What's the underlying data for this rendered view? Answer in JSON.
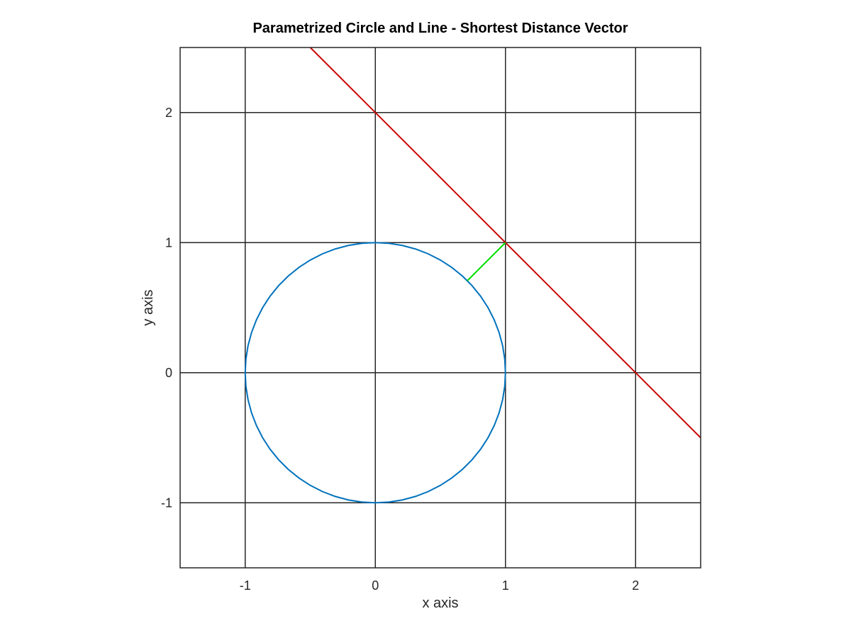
{
  "chart_data": {
    "type": "line",
    "title": "Parametrized Circle and Line - Shortest Distance Vector",
    "xlabel": "x axis",
    "ylabel": "y axis",
    "xlim": [
      -1.5,
      2.5
    ],
    "ylim": [
      -1.5,
      2.5
    ],
    "xticks": [
      -1,
      0,
      1,
      2
    ],
    "yticks": [
      -1,
      0,
      1,
      2
    ],
    "xtick_labels": [
      "-1",
      "0",
      "1",
      "2"
    ],
    "ytick_labels": [
      "-1",
      "0",
      "1",
      "2"
    ],
    "grid": true,
    "box": true,
    "series": [
      {
        "kind": "circle",
        "center": [
          0,
          0
        ],
        "radius": 1,
        "color": "#0072BD"
      },
      {
        "kind": "line",
        "equation": "x + y = 2",
        "x": [
          -0.55,
          2.5
        ],
        "y": [
          2.55,
          -0.5
        ],
        "color": "#CC0000"
      },
      {
        "kind": "segment",
        "x": [
          0.7071,
          1
        ],
        "y": [
          0.7071,
          1
        ],
        "color": "#00DD00"
      }
    ]
  }
}
